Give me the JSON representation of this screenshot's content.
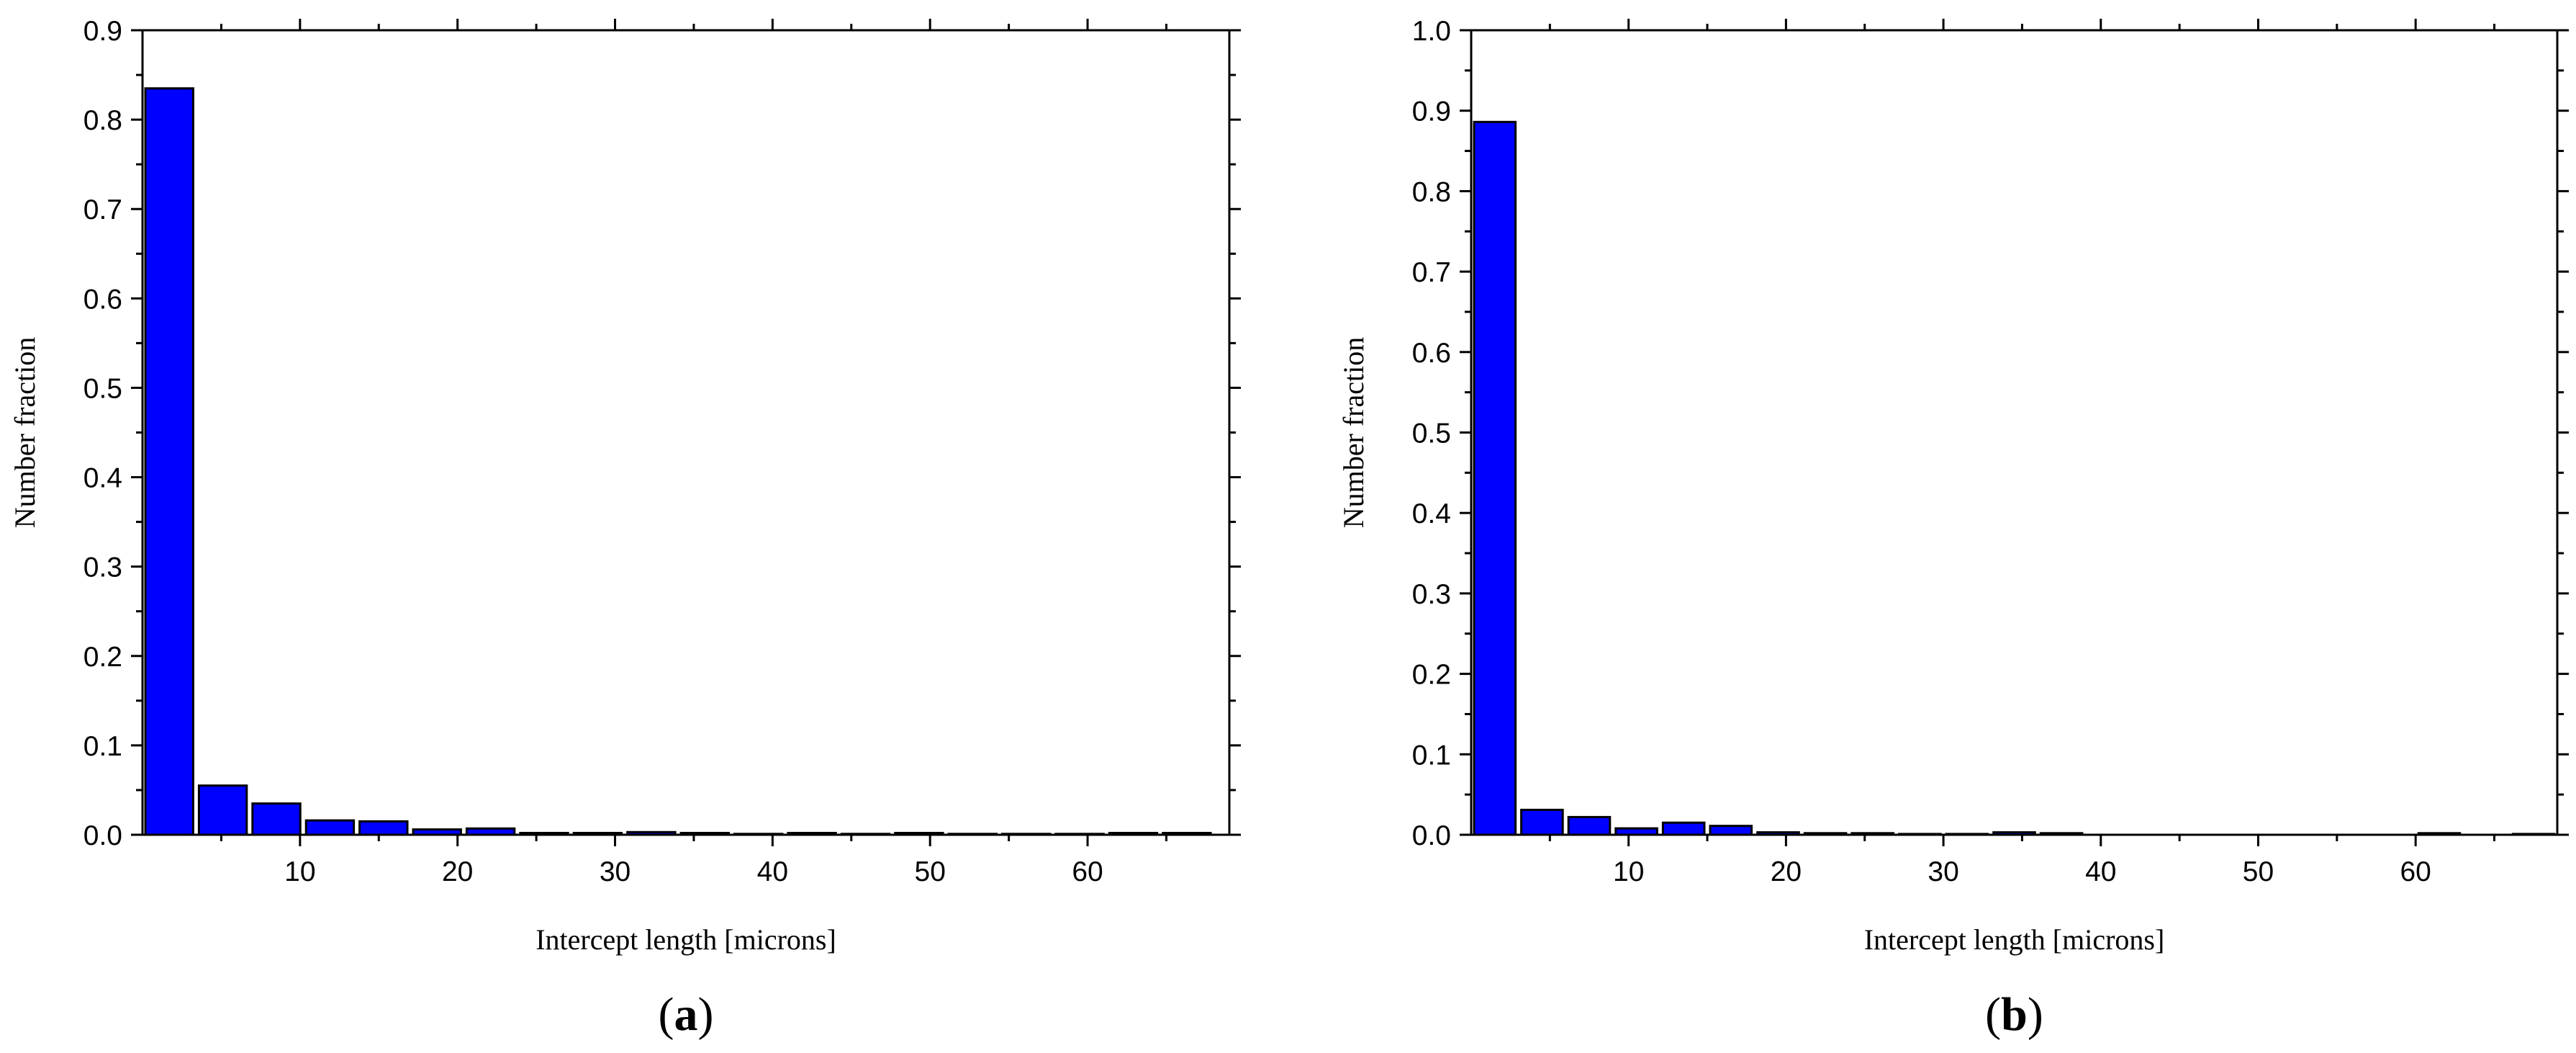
{
  "colors": {
    "bar_fill": "#0000ff",
    "bar_stroke": "#000000",
    "axis": "#000000"
  },
  "chart_data": [
    {
      "type": "bar",
      "panel_label": "a",
      "xlabel": "Intercept length [microns]",
      "ylabel": "Number fraction",
      "xlim": [
        0,
        69
      ],
      "ylim": [
        0,
        0.9
      ],
      "xticks": [
        10,
        20,
        30,
        40,
        50,
        60
      ],
      "yticks": [
        0.0,
        0.1,
        0.2,
        0.3,
        0.4,
        0.5,
        0.6,
        0.7,
        0.8,
        0.9
      ],
      "grid": false,
      "bin_width": 3.4,
      "x": [
        1.7,
        5.1,
        8.5,
        11.9,
        15.3,
        18.7,
        22.1,
        25.5,
        28.9,
        32.3,
        35.7,
        39.1,
        42.5,
        45.9,
        49.3,
        52.7,
        56.1,
        59.5,
        62.9,
        66.3
      ],
      "values": [
        0.835,
        0.055,
        0.035,
        0.016,
        0.015,
        0.006,
        0.007,
        0.002,
        0.002,
        0.003,
        0.002,
        0.001,
        0.002,
        0.001,
        0.002,
        0.001,
        0.001,
        0.001,
        0.002,
        0.002
      ]
    },
    {
      "type": "bar",
      "panel_label": "b",
      "xlabel": "Intercept length [microns]",
      "ylabel": "Number fraction",
      "xlim": [
        0,
        69
      ],
      "ylim": [
        0,
        1.0
      ],
      "xticks": [
        10,
        20,
        30,
        40,
        50,
        60
      ],
      "yticks": [
        0.0,
        0.1,
        0.2,
        0.3,
        0.4,
        0.5,
        0.6,
        0.7,
        0.8,
        0.9,
        1.0
      ],
      "grid": false,
      "bin_width": 3.0,
      "x": [
        1.5,
        4.5,
        7.5,
        10.5,
        13.5,
        16.5,
        19.5,
        22.5,
        25.5,
        28.5,
        31.5,
        34.5,
        37.5,
        40.5,
        43.5,
        46.5,
        49.5,
        52.5,
        55.5,
        58.5,
        61.5,
        64.5,
        67.5
      ],
      "values": [
        0.886,
        0.031,
        0.022,
        0.008,
        0.015,
        0.011,
        0.003,
        0.002,
        0.002,
        0.001,
        0.001,
        0.003,
        0.002,
        0.0,
        0.0,
        0.0,
        0.0,
        0.0,
        0.0,
        0.0,
        0.002,
        0.0,
        0.001
      ]
    }
  ]
}
